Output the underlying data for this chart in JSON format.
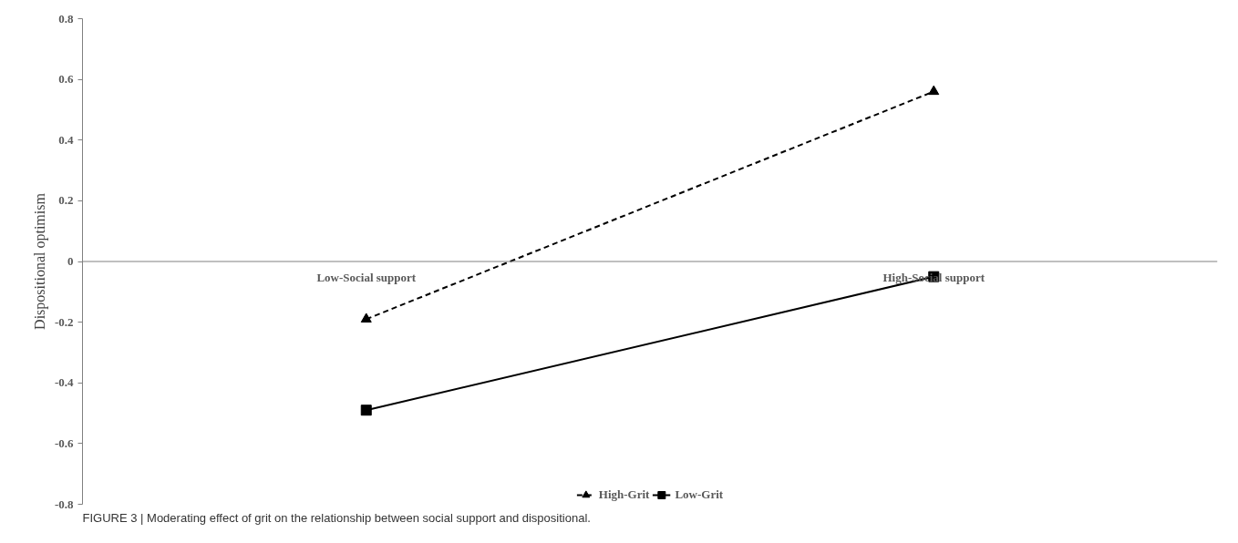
{
  "chart_data": {
    "type": "line",
    "ylabel": "Dispositional optimism",
    "categories": [
      "Low-Social support",
      "High-Social support"
    ],
    "series": [
      {
        "name": "High-Grit",
        "color": "#000000",
        "values": [
          -0.19,
          0.56
        ],
        "marker": "triangle",
        "line_style": "dashed"
      },
      {
        "name": "Low-Grit",
        "color": "#000000",
        "values": [
          -0.49,
          -0.05
        ],
        "marker": "square",
        "line_style": "solid"
      }
    ],
    "ylim": [
      -0.8,
      0.8
    ],
    "yticks": [
      -0.8,
      -0.6,
      -0.4,
      -0.2,
      0,
      0.2,
      0.4,
      0.6,
      0.8
    ],
    "grid": false,
    "legend": "bottom",
    "annotations": [
      "FIGURE 3 | Moderating effect of grit on the relationship between social support and dispositional."
    ]
  }
}
